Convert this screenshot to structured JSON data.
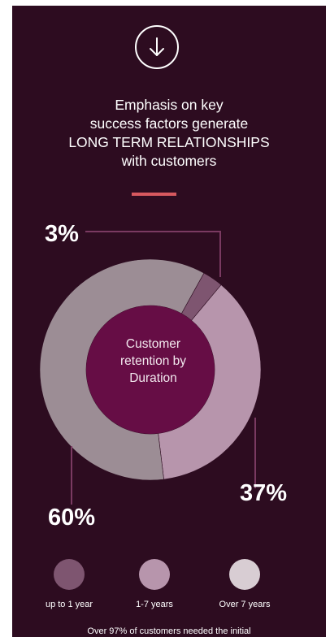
{
  "headline": {
    "line1": "Emphasis on key",
    "line2": "success factors generate",
    "line3": "LONG TERM RELATIONSHIPS",
    "line4": "with customers"
  },
  "icons": {
    "top": "arrow-down-circle-icon"
  },
  "colors": {
    "background": "#2d0c20",
    "accent": "#d7595f",
    "center": "#660d45",
    "leader_line": "#7a3a61"
  },
  "chart_data": {
    "type": "pie",
    "donut": true,
    "center_label": {
      "line1": "Customer",
      "line2": "retention by",
      "line3": "Duration"
    },
    "categories": [
      "up to 1 year",
      "1-7 years",
      "Over 7 years"
    ],
    "values": [
      3,
      37,
      60
    ],
    "value_labels": [
      "3%",
      "37%",
      "60%"
    ],
    "colors": [
      "#7e5570",
      "#b795ac",
      "#9c8d95"
    ],
    "legend_colors": [
      "#7e5570",
      "#b795ac",
      "#d8cdd3"
    ],
    "legend_placement": "bottom"
  },
  "footnote": "Over 97% of customers needed  the initial"
}
